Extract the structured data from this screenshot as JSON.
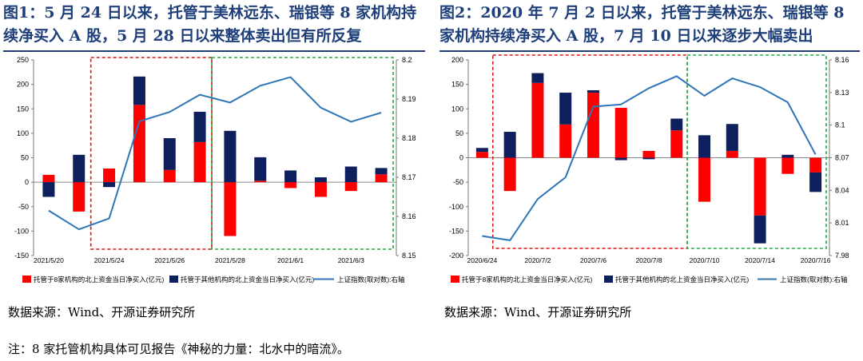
{
  "figures": [
    {
      "title": "图1：5 月 24 日以来，托管于美林远东、瑞银等 8 家机构持续净买入 A 股，5 月 28 日以来整体卖出但有所反复",
      "source": "数据来源：Wind、开源证券研究所"
    },
    {
      "title": "图2：2020 年 7 月 2 日以来，托管于美林远东、瑞银等 8 家机构持续净买入 A 股，7 月 10 日以来逐步大幅卖出",
      "source": "数据来源：Wind、开源证券研究所"
    }
  ],
  "note": "注：8 家托管机构具体可见报告《神秘的力量：北水中的暗流》。",
  "colors": {
    "red": "#ff0000",
    "navy": "#0d1f5c",
    "line": "#2e75b6",
    "red_box": "#e01010",
    "green_box": "#22aa44",
    "title": "#1f3f7a"
  },
  "chart_data": [
    {
      "type": "bar",
      "stacked": true,
      "categories": [
        "2021/5/20",
        "2021/5/21",
        "2021/5/24",
        "2021/5/25",
        "2021/5/26",
        "2021/5/27",
        "2021/5/28",
        "2021/5/31",
        "2021/6/1",
        "2021/6/2",
        "2021/6/3",
        "2021/6/4"
      ],
      "x_tick_labels": [
        "2021/5/20",
        "2021/5/24",
        "2021/5/26",
        "2021/5/28",
        "2021/6/1",
        "2021/6/3"
      ],
      "x_tick_index": [
        0,
        2,
        4,
        6,
        8,
        10
      ],
      "ylim": [
        -150,
        250
      ],
      "yticks": [
        -150,
        -100,
        -50,
        0,
        50,
        100,
        150,
        200,
        250
      ],
      "y2lim": [
        8.15,
        8.2
      ],
      "y2ticks": [
        "8.15",
        "8.16",
        "8.17",
        "8.18",
        "8.19",
        "8.2"
      ],
      "series": [
        {
          "name": "托管于8家机构的北上资金当日净买入(亿元)",
          "kind": "bar",
          "color": "#ff0000",
          "values": [
            15,
            -60,
            28,
            158,
            25,
            82,
            -110,
            3,
            -12,
            -30,
            -18,
            16
          ]
        },
        {
          "name": "托管于其他机构的北上资金当日净买入(亿元)",
          "kind": "bar",
          "color": "#0d1f5c",
          "values": [
            -30,
            56,
            -10,
            58,
            65,
            62,
            105,
            48,
            24,
            10,
            32,
            13
          ]
        },
        {
          "name": "上证指数(取对数):右轴",
          "kind": "line",
          "axis": "right",
          "color": "#2e75b6",
          "values": [
            8.1615,
            8.1567,
            8.1595,
            8.1843,
            8.1867,
            8.1911,
            8.1891,
            8.1934,
            8.1956,
            8.1878,
            8.1842,
            8.1865
          ]
        }
      ],
      "highlight_boxes": [
        {
          "color": "red",
          "from": 2,
          "to": 5
        },
        {
          "color": "green",
          "from": 6,
          "to": 11
        }
      ]
    },
    {
      "type": "bar",
      "stacked": true,
      "categories": [
        "2020/6/24",
        "2020/7/1",
        "2020/7/2",
        "2020/7/3",
        "2020/7/6",
        "2020/7/7",
        "2020/7/8",
        "2020/7/9",
        "2020/7/10",
        "2020/7/13",
        "2020/7/14",
        "2020/7/15",
        "2020/7/16"
      ],
      "x_tick_labels": [
        "2020/6/24",
        "2020/7/2",
        "2020/7/6",
        "2020/7/8",
        "2020/7/10",
        "2020/7/14",
        "2020/7/16"
      ],
      "x_tick_index": [
        0,
        2,
        4,
        6,
        8,
        10,
        12
      ],
      "ylim": [
        -200,
        200
      ],
      "yticks": [
        -200,
        -150,
        -100,
        -50,
        0,
        50,
        100,
        150,
        200
      ],
      "y2lim": [
        7.98,
        8.16
      ],
      "y2ticks": [
        "7.98",
        "8.01",
        "8.04",
        "8.07",
        "8.1",
        "8.13",
        "8.16"
      ],
      "series": [
        {
          "name": "托管于8家机构的北上资金当日净买入(亿元)",
          "kind": "bar",
          "color": "#ff0000",
          "values": [
            12,
            -68,
            153,
            68,
            133,
            102,
            14,
            56,
            -90,
            14,
            -118,
            -33,
            -30
          ]
        },
        {
          "name": "托管于其他机构的北上资金当日净买入(亿元)",
          "kind": "bar",
          "color": "#0d1f5c",
          "values": [
            8,
            53,
            20,
            65,
            5,
            -5,
            -3,
            24,
            46,
            55,
            -57,
            6,
            -40
          ]
        },
        {
          "name": "上证指数(取对数):右轴",
          "kind": "line",
          "axis": "right",
          "color": "#2e75b6",
          "values": [
            7.998,
            7.994,
            8.032,
            8.052,
            8.117,
            8.119,
            8.134,
            8.145,
            8.127,
            8.143,
            8.135,
            8.121,
            8.073
          ]
        }
      ],
      "highlight_boxes": [
        {
          "color": "red",
          "from": 1,
          "to": 7
        },
        {
          "color": "green",
          "from": 8,
          "to": 12
        }
      ]
    }
  ]
}
